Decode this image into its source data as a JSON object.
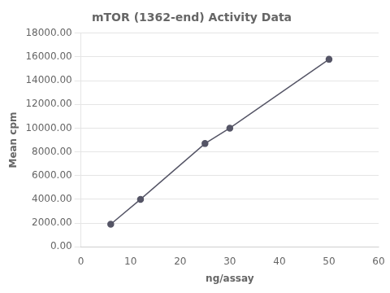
{
  "chart_data": {
    "type": "line",
    "title": "mTOR (1362-end) Activity Data",
    "xlabel": "ng/assay",
    "ylabel": "Mean cpm",
    "x": [
      6,
      12,
      25,
      30,
      50
    ],
    "values": [
      1900,
      4000,
      8700,
      10000,
      15800
    ],
    "color": "#555566",
    "marker": "circle",
    "xlim": [
      0,
      60
    ],
    "ylim": [
      0,
      18000
    ],
    "xticks": [
      0,
      10,
      20,
      30,
      40,
      50,
      60
    ],
    "yticks": [
      {
        "value": 0,
        "label": "0.00"
      },
      {
        "value": 2000,
        "label": "2000.00"
      },
      {
        "value": 4000,
        "label": "4000.00"
      },
      {
        "value": 6000,
        "label": "6000.00"
      },
      {
        "value": 8000,
        "label": "8000.00"
      },
      {
        "value": 10000,
        "label": "10000.00"
      },
      {
        "value": 12000,
        "label": "12000.00"
      },
      {
        "value": 14000,
        "label": "14000.00"
      },
      {
        "value": 16000,
        "label": "16000.00"
      },
      {
        "value": 18000,
        "label": "18000.00"
      }
    ],
    "grid": "y"
  }
}
